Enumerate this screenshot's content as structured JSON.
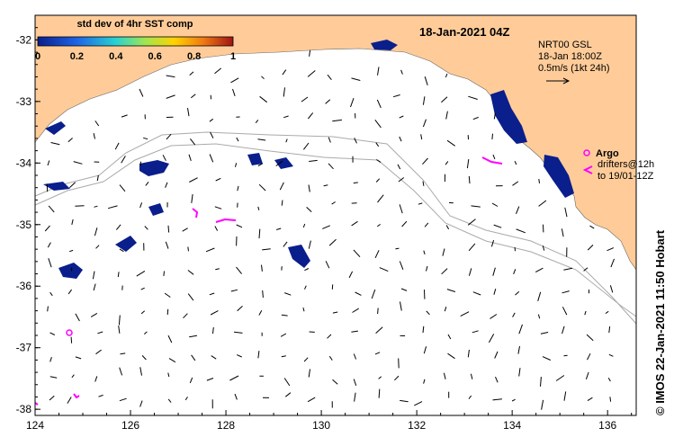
{
  "title": "18-Jan-2021 04Z",
  "legend": {
    "label": "std dev of 4hr SST comp",
    "ticks": [
      "0",
      "0.2",
      "0.4",
      "0.6",
      "0.8",
      "1"
    ]
  },
  "info": {
    "line1": "NRT00 GSL",
    "line2": "18-Jan 18:00Z",
    "line3": "0.5m/s (1kt 24h)"
  },
  "argo": {
    "label": "Argo",
    "drifters_line1": "drifters@12h",
    "drifters_line2": "to 19/01-12Z"
  },
  "credit": "© IMOS 22-Jan-2021 11:50 Hobart",
  "axes": {
    "lon_labels": [
      "124",
      "126",
      "128",
      "130",
      "132",
      "134",
      "136"
    ],
    "lat_labels": [
      "-32",
      "-33",
      "-34",
      "-35",
      "-36",
      "-37",
      "-38"
    ],
    "lon_range": [
      124,
      136.6
    ],
    "lat_range": [
      -31.6,
      -38.1
    ]
  },
  "colors": {
    "land": "#FFCC99",
    "sst_patch": "#0A1E8C",
    "argo": "#FF00FF",
    "bathymetry": "#AAAAAA",
    "arrow": "#000000"
  },
  "icons": [
    "argo-marker-icon",
    "drifter-chevron-icon",
    "scale-arrow-icon"
  ]
}
